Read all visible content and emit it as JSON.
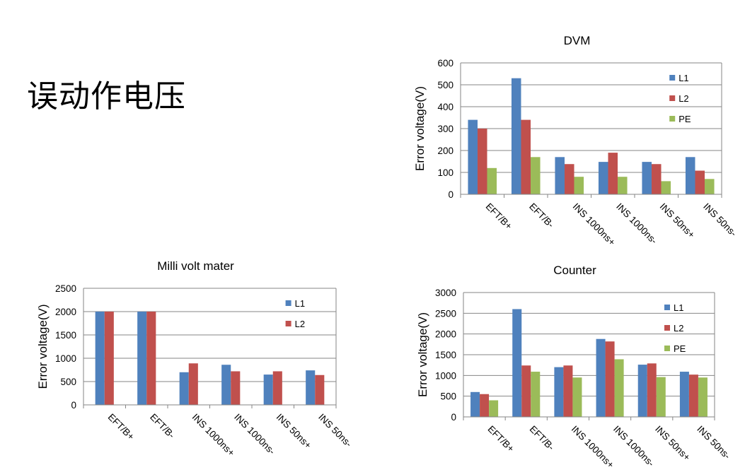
{
  "slide": {
    "title": "误动作电压"
  },
  "chart_data": [
    {
      "type": "bar",
      "title": "DVM",
      "xlabel": "",
      "ylabel": "Error voltage(V)",
      "ylim": [
        0,
        600
      ],
      "yticks": [
        0,
        100,
        200,
        300,
        400,
        500,
        600
      ],
      "grid": true,
      "legend": "right",
      "categories": [
        "EFT/B+",
        "EFT/B-",
        "INS 1000ns+",
        "INS 1000ns-",
        "INS 50ns+",
        "INS 50ns-"
      ],
      "series": [
        {
          "name": "L1",
          "color": "#4F81BD",
          "values": [
            340,
            530,
            170,
            148,
            148,
            170
          ]
        },
        {
          "name": "L2",
          "color": "#C0504D",
          "values": [
            300,
            340,
            138,
            190,
            138,
            108
          ]
        },
        {
          "name": "PE",
          "color": "#9BBB59",
          "values": [
            120,
            170,
            80,
            80,
            60,
            70
          ]
        }
      ]
    },
    {
      "type": "bar",
      "title": "Milli volt mater",
      "xlabel": "",
      "ylabel": "Error voltage(V)",
      "ylim": [
        0,
        2500
      ],
      "yticks": [
        0,
        500,
        1000,
        1500,
        2000,
        2500
      ],
      "grid": true,
      "legend": "right",
      "categories": [
        "EFT/B+",
        "EFT/B-",
        "INS 1000ns+",
        "INS 1000ns-",
        "INS 50ns+",
        "INS 50ns-"
      ],
      "series": [
        {
          "name": "L1",
          "color": "#4F81BD",
          "values": [
            2000,
            2000,
            700,
            860,
            650,
            740
          ]
        },
        {
          "name": "L2",
          "color": "#C0504D",
          "values": [
            2000,
            2000,
            890,
            720,
            720,
            640
          ]
        }
      ]
    },
    {
      "type": "bar",
      "title": "Counter",
      "xlabel": "",
      "ylabel": "Error voltage(V)",
      "ylim": [
        0,
        3000
      ],
      "yticks": [
        0,
        500,
        1000,
        1500,
        2000,
        2500,
        3000
      ],
      "grid": true,
      "legend": "right",
      "categories": [
        "EFT/B+",
        "EFT/B-",
        "INS 1000ns+",
        "INS 1000ns-",
        "INS 50ns+",
        "INS 50ns-"
      ],
      "series": [
        {
          "name": "L1",
          "color": "#4F81BD",
          "values": [
            600,
            2600,
            1200,
            1880,
            1260,
            1090
          ]
        },
        {
          "name": "L2",
          "color": "#C0504D",
          "values": [
            550,
            1240,
            1240,
            1820,
            1290,
            1020
          ]
        },
        {
          "name": "PE",
          "color": "#9BBB59",
          "values": [
            400,
            1090,
            950,
            1390,
            960,
            950
          ]
        }
      ]
    }
  ]
}
